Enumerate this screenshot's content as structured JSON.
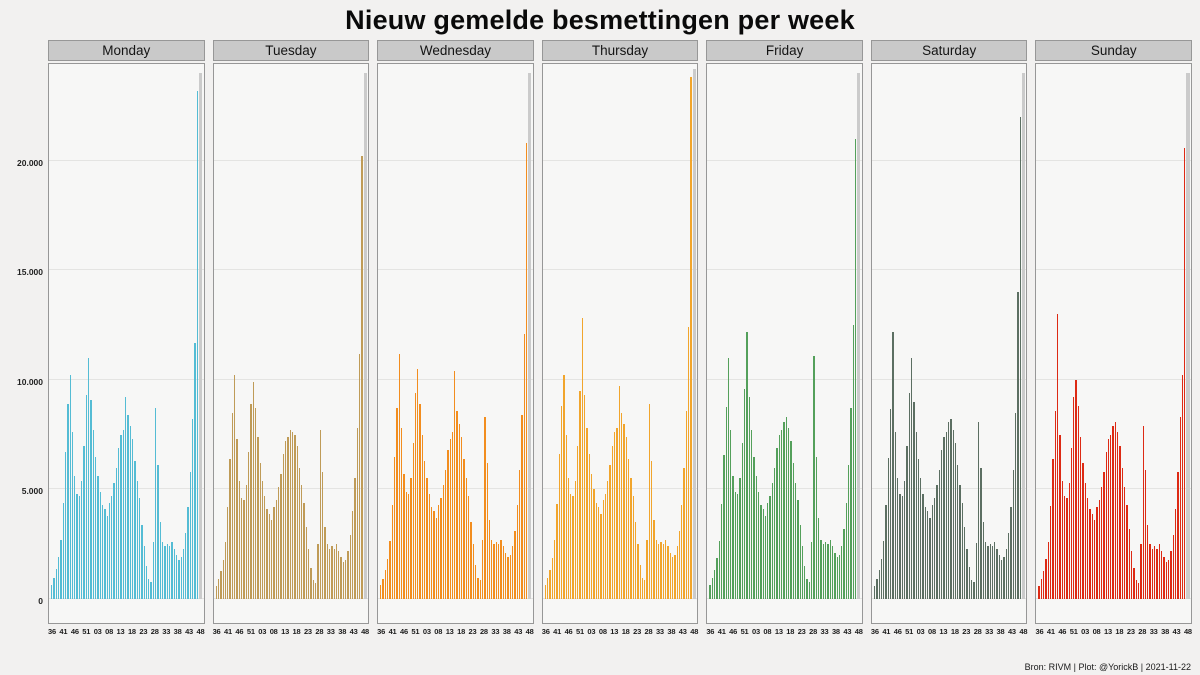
{
  "caption": "Bron: RIVM | Plot: @YorickB | 2021-11-22",
  "y_axis": {
    "labels": [
      "0",
      "5.000",
      "10.000",
      "15.000",
      "20.000"
    ],
    "values": [
      0,
      5000,
      10000,
      15000,
      20000
    ]
  },
  "chart_data": {
    "type": "bar",
    "title": "Nieuw gemelde besmettingen per week",
    "xlabel": "",
    "ylabel": "",
    "ylim": [
      0,
      24500
    ],
    "grid_on": true,
    "grid_values": [
      0,
      5000,
      10000,
      15000,
      20000
    ],
    "x_ticks": [
      "36",
      "41",
      "46",
      "51",
      "03",
      "08",
      "13",
      "18",
      "23",
      "28",
      "33",
      "38",
      "43",
      "48"
    ],
    "weeks": [
      "36",
      "37",
      "38",
      "39",
      "40",
      "41",
      "42",
      "43",
      "44",
      "45",
      "46",
      "47",
      "48",
      "49",
      "50",
      "51",
      "52",
      "53",
      "01",
      "02",
      "03",
      "04",
      "05",
      "06",
      "07",
      "08",
      "09",
      "10",
      "11",
      "12",
      "13",
      "14",
      "15",
      "16",
      "17",
      "18",
      "19",
      "20",
      "21",
      "22",
      "23",
      "24",
      "25",
      "26",
      "27",
      "28",
      "29",
      "30",
      "31",
      "32",
      "33",
      "34",
      "35",
      "36",
      "37",
      "38",
      "39",
      "40",
      "41",
      "42",
      "43",
      "44",
      "45",
      "46",
      "47"
    ],
    "incomplete_bar_color": "#CBCBCB",
    "last_bar_incomplete": true,
    "facets": [
      {
        "label": "Monday",
        "color": "#54BCD4",
        "values": [
          650,
          950,
          1350,
          1900,
          2700,
          4400,
          6700,
          8900,
          10200,
          7600,
          5600,
          4800,
          4700,
          5400,
          7000,
          9300,
          11000,
          9100,
          7700,
          6500,
          5600,
          4900,
          4300,
          4100,
          3800,
          4400,
          4700,
          5300,
          6000,
          6900,
          7500,
          7700,
          9200,
          8400,
          7900,
          7300,
          6300,
          5400,
          4600,
          3400,
          2400,
          1500,
          900,
          800,
          2600,
          8700,
          6100,
          3500,
          2600,
          2400,
          2500,
          2400,
          2600,
          2300,
          2000,
          1800,
          1900,
          2300,
          3000,
          4200,
          5800,
          8200,
          11700,
          23200,
          24000
        ]
      },
      {
        "label": "Tuesday",
        "color": "#BF9B57",
        "values": [
          600,
          900,
          1300,
          1800,
          2600,
          4200,
          6400,
          8500,
          10200,
          7300,
          5400,
          4600,
          4500,
          5200,
          6700,
          8900,
          9900,
          8700,
          7400,
          6200,
          5400,
          4700,
          4100,
          3900,
          3600,
          4200,
          4500,
          5100,
          5700,
          6600,
          7200,
          7400,
          7700,
          7600,
          7500,
          7000,
          6000,
          5200,
          4400,
          3300,
          2300,
          1400,
          850,
          750,
          2500,
          7700,
          5800,
          3300,
          2500,
          2300,
          2400,
          2300,
          2500,
          2200,
          1900,
          1700,
          1800,
          2200,
          2900,
          4000,
          5500,
          7800,
          11200,
          20200,
          24000
        ]
      },
      {
        "label": "Wednesday",
        "color": "#F28D1E",
        "values": [
          620,
          930,
          1320,
          1850,
          2650,
          4300,
          6500,
          8700,
          11200,
          7800,
          5700,
          4900,
          4800,
          5500,
          7100,
          9400,
          10500,
          8900,
          7500,
          6300,
          5500,
          4800,
          4200,
          4000,
          3700,
          4300,
          4600,
          5200,
          5900,
          6800,
          7300,
          7600,
          10400,
          8600,
          8000,
          7400,
          6400,
          5500,
          4700,
          3500,
          2500,
          1550,
          950,
          850,
          2700,
          8300,
          6200,
          3600,
          2700,
          2500,
          2600,
          2500,
          2700,
          2400,
          2100,
          1900,
          2000,
          2400,
          3100,
          4300,
          5900,
          8400,
          12100,
          20800,
          24000
        ]
      },
      {
        "label": "Thursday",
        "color": "#F1A52C",
        "values": [
          640,
          940,
          1340,
          1880,
          2680,
          4350,
          6600,
          8800,
          10200,
          7500,
          5500,
          4800,
          4700,
          5400,
          7000,
          9500,
          12800,
          9300,
          7800,
          6600,
          5700,
          5000,
          4400,
          4200,
          3900,
          4500,
          4800,
          5400,
          6100,
          7000,
          7600,
          7800,
          9700,
          8500,
          8000,
          7400,
          6400,
          5500,
          4700,
          3500,
          2500,
          1550,
          950,
          850,
          2700,
          8900,
          6300,
          3600,
          2700,
          2500,
          2600,
          2500,
          2700,
          2400,
          2100,
          1900,
          2000,
          2400,
          3100,
          4300,
          6000,
          8600,
          12400,
          23800,
          24200
        ]
      },
      {
        "label": "Friday",
        "color": "#54A05B",
        "values": [
          630,
          940,
          1330,
          1870,
          2670,
          4320,
          6550,
          8750,
          11000,
          7700,
          5600,
          4900,
          4800,
          5500,
          7100,
          9600,
          12200,
          9200,
          7700,
          6500,
          5600,
          4900,
          4300,
          4100,
          3800,
          4400,
          4700,
          5300,
          6000,
          6900,
          7500,
          7700,
          8100,
          8300,
          7800,
          7200,
          6200,
          5300,
          4500,
          3400,
          2400,
          1500,
          900,
          800,
          2600,
          11100,
          6500,
          3700,
          2700,
          2500,
          2600,
          2500,
          2700,
          2400,
          2100,
          1900,
          2000,
          2400,
          3200,
          4400,
          6100,
          8700,
          12500,
          21000,
          24000
        ]
      },
      {
        "label": "Saturday",
        "color": "#5C6F62",
        "values": [
          610,
          920,
          1310,
          1840,
          2640,
          4280,
          6450,
          8650,
          12200,
          7600,
          5500,
          4800,
          4700,
          5400,
          7000,
          9400,
          11000,
          9000,
          7600,
          6400,
          5500,
          4800,
          4200,
          4000,
          3700,
          4300,
          4600,
          5200,
          5900,
          6800,
          7400,
          7600,
          8100,
          8200,
          7700,
          7100,
          6100,
          5200,
          4400,
          3300,
          2300,
          1450,
          880,
          780,
          2550,
          8100,
          6000,
          3500,
          2600,
          2400,
          2500,
          2400,
          2600,
          2300,
          2000,
          1800,
          1900,
          2300,
          3000,
          4200,
          5900,
          8500,
          14000,
          22000,
          24000
        ]
      },
      {
        "label": "Sunday",
        "color": "#DD2A14",
        "values": [
          590,
          900,
          1290,
          1820,
          2620,
          4250,
          6400,
          8600,
          13000,
          7500,
          5400,
          4700,
          4600,
          5300,
          6900,
          9200,
          10000,
          8800,
          7400,
          6200,
          5300,
          4600,
          4100,
          3900,
          3600,
          4200,
          4500,
          5100,
          5800,
          6700,
          7300,
          7500,
          7900,
          8100,
          7600,
          7000,
          6000,
          5100,
          4300,
          3200,
          2200,
          1400,
          850,
          750,
          2500,
          7900,
          5900,
          3400,
          2500,
          2300,
          2400,
          2300,
          2500,
          2200,
          1900,
          1700,
          1800,
          2200,
          2900,
          4100,
          5800,
          8300,
          10200,
          20600,
          24000
        ]
      }
    ]
  }
}
